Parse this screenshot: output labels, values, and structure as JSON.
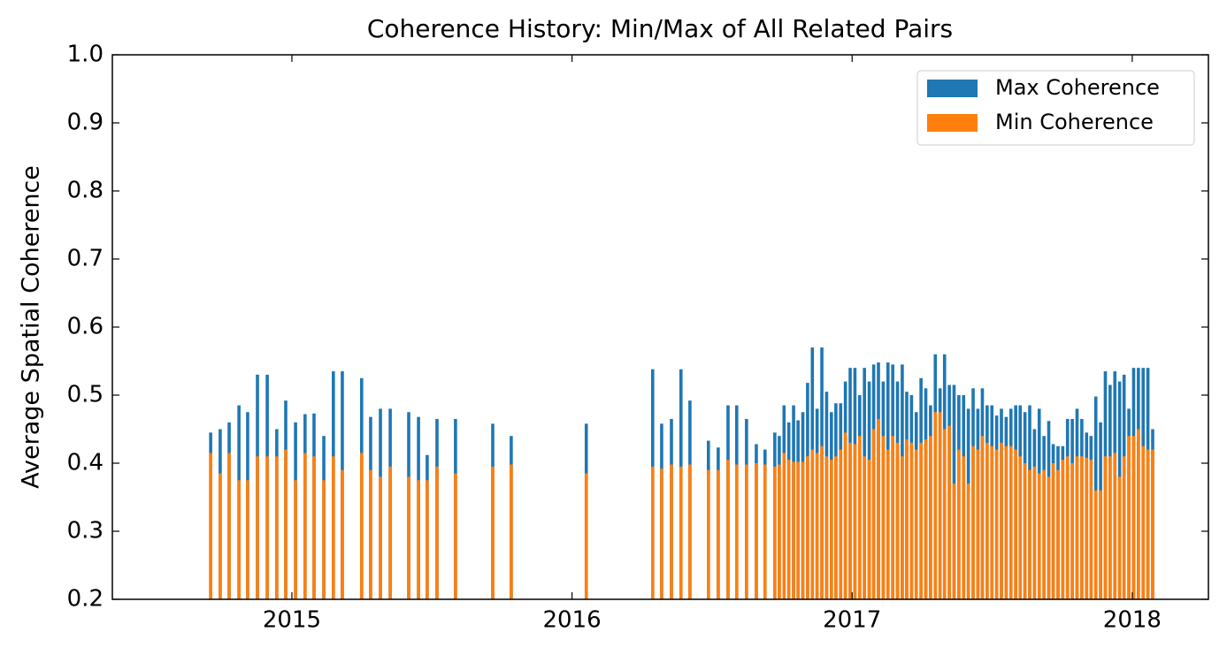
{
  "chart_data": {
    "type": "bar",
    "title": "Coherence History: Min/Max of All Related Pairs",
    "ylabel": "Average Spatial Coherence",
    "x": [
      2014.71,
      2014.744,
      2014.776,
      2014.811,
      2014.842,
      2014.877,
      2014.912,
      2014.946,
      2014.978,
      2015.013,
      2015.047,
      2015.079,
      2015.114,
      2015.148,
      2015.18,
      2015.249,
      2015.281,
      2015.316,
      2015.351,
      2015.417,
      2015.452,
      2015.483,
      2015.518,
      2015.584,
      2015.717,
      2015.783,
      2016.051,
      2016.288,
      2016.32,
      2016.355,
      2016.389,
      2016.421,
      2016.487,
      2016.522,
      2016.557,
      2016.588,
      2016.623,
      2016.658,
      2016.689,
      2016.724,
      2016.74,
      2016.757,
      2016.774,
      2016.791,
      2016.807,
      2016.824,
      2016.841,
      2016.858,
      2016.875,
      2016.892,
      2016.909,
      2016.926,
      2016.942,
      2016.959,
      2016.976,
      2016.993,
      2017.01,
      2017.027,
      2017.044,
      2017.061,
      2017.077,
      2017.094,
      2017.111,
      2017.128,
      2017.145,
      2017.162,
      2017.179,
      2017.195,
      2017.212,
      2017.229,
      2017.246,
      2017.263,
      2017.28,
      2017.297,
      2017.314,
      2017.33,
      2017.347,
      2017.364,
      2017.381,
      2017.398,
      2017.415,
      2017.432,
      2017.449,
      2017.465,
      2017.482,
      2017.499,
      2017.516,
      2017.533,
      2017.55,
      2017.567,
      2017.584,
      2017.6,
      2017.617,
      2017.634,
      2017.651,
      2017.668,
      2017.685,
      2017.702,
      2017.718,
      2017.735,
      2017.752,
      2017.769,
      2017.786,
      2017.803,
      2017.82,
      2017.837,
      2017.853,
      2017.87,
      2017.887,
      2017.904,
      2017.921,
      2017.938,
      2017.955,
      2017.971,
      2017.988,
      2018.005,
      2018.022,
      2018.039,
      2018.056,
      2018.073
    ],
    "series": [
      {
        "name": "Max Coherence",
        "color": "#1f77b4",
        "values": [
          0.445,
          0.45,
          0.46,
          0.485,
          0.475,
          0.53,
          0.53,
          0.45,
          0.492,
          0.46,
          0.472,
          0.473,
          0.44,
          0.535,
          0.535,
          0.525,
          0.468,
          0.48,
          0.48,
          0.475,
          0.468,
          0.412,
          0.465,
          0.465,
          0.458,
          0.44,
          0.458,
          0.538,
          0.458,
          0.465,
          0.538,
          0.492,
          0.433,
          0.423,
          0.485,
          0.485,
          0.465,
          0.428,
          0.42,
          0.445,
          0.44,
          0.485,
          0.46,
          0.485,
          0.463,
          0.475,
          0.518,
          0.57,
          0.48,
          0.57,
          0.505,
          0.475,
          0.488,
          0.488,
          0.52,
          0.54,
          0.54,
          0.5,
          0.54,
          0.52,
          0.545,
          0.548,
          0.52,
          0.548,
          0.545,
          0.52,
          0.545,
          0.505,
          0.5,
          0.475,
          0.525,
          0.51,
          0.485,
          0.56,
          0.51,
          0.56,
          0.515,
          0.515,
          0.5,
          0.5,
          0.48,
          0.51,
          0.48,
          0.51,
          0.485,
          0.485,
          0.47,
          0.48,
          0.468,
          0.48,
          0.485,
          0.485,
          0.475,
          0.485,
          0.45,
          0.48,
          0.44,
          0.462,
          0.428,
          0.425,
          0.425,
          0.465,
          0.465,
          0.48,
          0.465,
          0.445,
          0.44,
          0.498,
          0.46,
          0.535,
          0.515,
          0.535,
          0.52,
          0.53,
          0.48,
          0.54,
          0.54,
          0.54,
          0.54,
          0.45
        ]
      },
      {
        "name": "Min Coherence",
        "color": "#ff7f0e",
        "values": [
          0.415,
          0.385,
          0.415,
          0.375,
          0.375,
          0.41,
          0.41,
          0.41,
          0.42,
          0.375,
          0.415,
          0.41,
          0.375,
          0.41,
          0.39,
          0.415,
          0.39,
          0.38,
          0.395,
          0.38,
          0.375,
          0.375,
          0.395,
          0.385,
          0.395,
          0.398,
          0.385,
          0.395,
          0.392,
          0.398,
          0.395,
          0.398,
          0.39,
          0.39,
          0.405,
          0.398,
          0.398,
          0.4,
          0.398,
          0.395,
          0.398,
          0.415,
          0.405,
          0.402,
          0.402,
          0.402,
          0.41,
          0.42,
          0.415,
          0.425,
          0.41,
          0.405,
          0.41,
          0.42,
          0.445,
          0.43,
          0.428,
          0.44,
          0.41,
          0.405,
          0.45,
          0.465,
          0.44,
          0.42,
          0.44,
          0.43,
          0.41,
          0.435,
          0.43,
          0.42,
          0.43,
          0.435,
          0.44,
          0.475,
          0.475,
          0.45,
          0.455,
          0.37,
          0.42,
          0.41,
          0.37,
          0.425,
          0.42,
          0.44,
          0.43,
          0.425,
          0.42,
          0.43,
          0.425,
          0.425,
          0.42,
          0.41,
          0.4,
          0.39,
          0.395,
          0.385,
          0.39,
          0.38,
          0.4,
          0.39,
          0.405,
          0.41,
          0.4,
          0.41,
          0.41,
          0.408,
          0.405,
          0.36,
          0.36,
          0.41,
          0.41,
          0.415,
          0.38,
          0.41,
          0.44,
          0.44,
          0.45,
          0.425,
          0.42,
          0.42
        ]
      }
    ],
    "xlim": [
      2014.359,
      2018.272
    ],
    "xticks": [
      2015,
      2016,
      2017,
      2018
    ],
    "ylim": [
      0.2,
      1
    ],
    "yticks": [
      0.2,
      0.3,
      0.4,
      0.5,
      0.6,
      0.7,
      0.8,
      0.9,
      {
        "value": 1,
        "label": "1.0"
      }
    ],
    "legend": "upper right"
  }
}
